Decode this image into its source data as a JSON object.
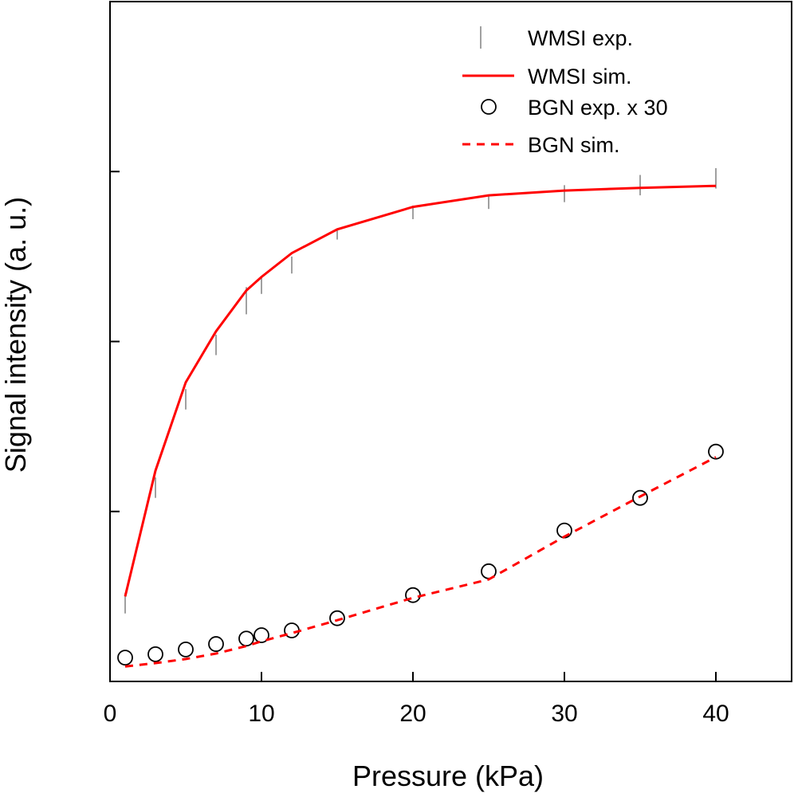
{
  "chart_data": {
    "type": "line",
    "title": "",
    "xlabel": "Pressure (kPa)",
    "ylabel": "Signal intensity (a. u.)",
    "xlim": [
      0,
      45
    ],
    "ylim": [
      0,
      10
    ],
    "x_ticks": [
      0,
      10,
      20,
      30,
      40
    ],
    "x_tick_labels": [
      "0",
      "10",
      "20",
      "30",
      "40"
    ],
    "y_ticks": [
      2.5,
      5.0,
      7.5
    ],
    "y_tick_labels": [],
    "grid": false,
    "legend_position": "top-right",
    "series": [
      {
        "name": "WMSI exp.",
        "kind": "errorbar",
        "color": "#808080",
        "x": [
          1,
          3,
          5,
          7,
          9,
          10,
          12,
          15,
          20,
          25,
          30,
          35,
          40
        ],
        "low": [
          1.0,
          2.7,
          4.0,
          4.8,
          5.4,
          5.7,
          6.0,
          6.5,
          6.8,
          6.95,
          7.05,
          7.15,
          7.25
        ],
        "high": [
          1.3,
          3.0,
          4.3,
          5.1,
          5.8,
          5.95,
          6.25,
          6.65,
          7.0,
          7.15,
          7.3,
          7.45,
          7.55
        ]
      },
      {
        "name": "WMSI sim.",
        "kind": "line",
        "color": "#ff0000",
        "dash": "solid",
        "x": [
          1,
          3,
          5,
          7,
          9,
          10,
          12,
          15,
          20,
          25,
          30,
          35,
          40
        ],
        "y": [
          1.25,
          3.1,
          4.4,
          5.15,
          5.75,
          5.95,
          6.3,
          6.65,
          6.98,
          7.15,
          7.22,
          7.26,
          7.29
        ]
      },
      {
        "name": "BGN exp. x 30",
        "kind": "scatter",
        "color": "#000000",
        "marker": "open-circle",
        "x": [
          1,
          3,
          5,
          7,
          9,
          10,
          12,
          15,
          20,
          25,
          30,
          35,
          40
        ],
        "y": [
          0.35,
          0.4,
          0.47,
          0.55,
          0.63,
          0.68,
          0.75,
          0.93,
          1.27,
          1.62,
          2.22,
          2.7,
          3.38
        ]
      },
      {
        "name": "BGN sim.",
        "kind": "line",
        "color": "#ff0000",
        "dash": "dashed",
        "x": [
          1,
          3,
          5,
          7,
          9,
          10,
          12,
          15,
          20,
          25,
          30,
          35,
          40
        ],
        "y": [
          0.22,
          0.27,
          0.33,
          0.41,
          0.52,
          0.59,
          0.71,
          0.9,
          1.23,
          1.5,
          2.13,
          2.72,
          3.3
        ]
      }
    ]
  }
}
